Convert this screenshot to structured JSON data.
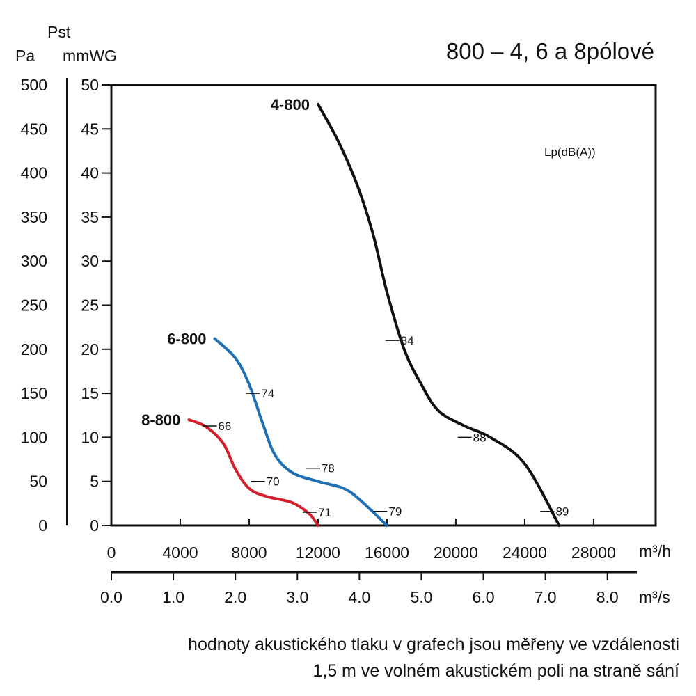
{
  "chart_data": {
    "type": "line",
    "title": "800 – 4, 6 a 8pólové",
    "y_left_unit": "Pa",
    "y_symbol": "Pst",
    "y_right_unit": "mmWG",
    "x_unit_primary": "m³/h",
    "x_unit_secondary": "m³/s",
    "noise_unit_label": "Lp(dB(A))",
    "ylim": [
      0,
      50
    ],
    "xlim": [
      0,
      31600
    ],
    "grid": false,
    "y_pa_ticks": [
      "0",
      "50",
      "100",
      "150",
      "200",
      "250",
      "300",
      "350",
      "400",
      "450",
      "500"
    ],
    "y_mmwg_ticks": [
      "0",
      "5",
      "10",
      "15",
      "20",
      "25",
      "30",
      "35",
      "40",
      "45",
      "50"
    ],
    "x_m3h_ticks": [
      "0",
      "4000",
      "8000",
      "12000",
      "16000",
      "20000",
      "24000",
      "28000"
    ],
    "x_m3s_ticks": [
      "0.0",
      "1.0",
      "2.0",
      "3.0",
      "4.0",
      "5.0",
      "6.0",
      "7.0",
      "8.0"
    ],
    "series": [
      {
        "name": "4-800",
        "color": "#111111",
        "points": [
          [
            12000,
            47.8
          ],
          [
            13200,
            43.5
          ],
          [
            14300,
            38.5
          ],
          [
            15200,
            33
          ],
          [
            16000,
            26.5
          ],
          [
            17000,
            20
          ],
          [
            18000,
            16
          ],
          [
            19000,
            13
          ],
          [
            20500,
            11.3
          ],
          [
            22000,
            10
          ],
          [
            24000,
            7
          ],
          [
            26000,
            0
          ]
        ],
        "noise_labels": [
          {
            "x": 16800,
            "y": 21,
            "text": "84"
          },
          {
            "x": 21000,
            "y": 10,
            "text": "88"
          },
          {
            "x": 25800,
            "y": 1.6,
            "text": "89"
          }
        ]
      },
      {
        "name": "6-800",
        "color": "#1f6fb5",
        "points": [
          [
            6000,
            21.2
          ],
          [
            7200,
            19
          ],
          [
            8000,
            16
          ],
          [
            8800,
            11.5
          ],
          [
            9500,
            8
          ],
          [
            10500,
            6
          ],
          [
            12000,
            5
          ],
          [
            13500,
            4.2
          ],
          [
            14500,
            2.8
          ],
          [
            16000,
            0
          ]
        ],
        "noise_labels": [
          {
            "x": 8700,
            "y": 15,
            "text": "74"
          },
          {
            "x": 12200,
            "y": 6.5,
            "text": "78"
          },
          {
            "x": 16100,
            "y": 1.6,
            "text": "79"
          }
        ]
      },
      {
        "name": "8-800",
        "color": "#d4202c",
        "points": [
          [
            4500,
            12
          ],
          [
            5500,
            11.2
          ],
          [
            6500,
            9.3
          ],
          [
            7200,
            6.4
          ],
          [
            8000,
            4.2
          ],
          [
            9000,
            3.3
          ],
          [
            10500,
            2.6
          ],
          [
            11500,
            1.3
          ],
          [
            12000,
            0
          ]
        ],
        "noise_labels": [
          {
            "x": 6200,
            "y": 11.3,
            "text": "66"
          },
          {
            "x": 9000,
            "y": 5,
            "text": "70"
          },
          {
            "x": 12000,
            "y": 1.5,
            "text": "71"
          }
        ]
      }
    ]
  },
  "caption": {
    "line1": "hodnoty akustického tlaku v grafech jsou měřeny ve vzdálenosti",
    "line2": "1,5 m ve volném akustickém poli na straně sání"
  }
}
